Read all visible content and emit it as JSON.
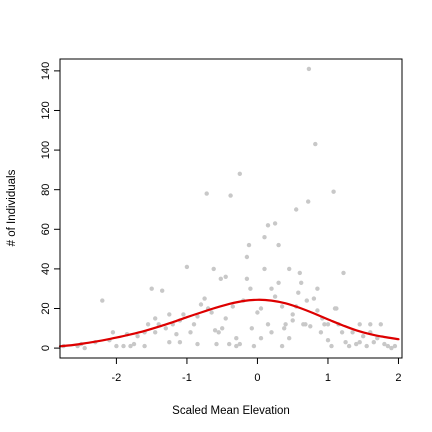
{
  "chart_data": {
    "type": "scatter",
    "title": "",
    "xlabel": "Scaled Mean Elevation",
    "ylabel": "# of Individuals",
    "xlim": [
      -2.8,
      2.05
    ],
    "ylim": [
      -5,
      146
    ],
    "x_ticks": [
      -2,
      -1,
      0,
      1,
      2
    ],
    "x_tick_labels": [
      "-2",
      "-1",
      "0",
      "1",
      "2"
    ],
    "y_ticks": [
      0,
      20,
      40,
      60,
      80,
      100,
      120,
      140
    ],
    "y_tick_labels": [
      "0",
      "20",
      "40",
      "60",
      "80",
      "100",
      "120",
      "140"
    ],
    "grid": false,
    "point_color": "#c8c8c8",
    "curve_color": "#dd0000",
    "series": [
      {
        "points": [
          [
            -2.75,
            1
          ],
          [
            -2.55,
            1
          ],
          [
            -2.5,
            2
          ],
          [
            -2.45,
            0
          ],
          [
            -2.3,
            3
          ],
          [
            -2.2,
            24
          ],
          [
            -2.1,
            4
          ],
          [
            -2.05,
            8
          ],
          [
            -2.0,
            1
          ],
          [
            -1.9,
            1
          ],
          [
            -1.85,
            7
          ],
          [
            -1.8,
            1
          ],
          [
            -1.75,
            2
          ],
          [
            -1.7,
            6
          ],
          [
            -1.6,
            1
          ],
          [
            -1.55,
            12
          ],
          [
            -1.5,
            30
          ],
          [
            -1.45,
            8
          ],
          [
            -1.4,
            12
          ],
          [
            -1.35,
            29
          ],
          [
            -1.3,
            10
          ],
          [
            -1.25,
            3
          ],
          [
            -1.2,
            12
          ],
          [
            -1.15,
            7
          ],
          [
            -1.1,
            3
          ],
          [
            -1.05,
            17
          ],
          [
            -1.0,
            41
          ],
          [
            -0.95,
            8
          ],
          [
            -0.9,
            12
          ],
          [
            -0.85,
            16
          ],
          [
            -0.8,
            22
          ],
          [
            -0.75,
            25
          ],
          [
            -0.7,
            20
          ],
          [
            -0.65,
            18
          ],
          [
            -0.6,
            9
          ],
          [
            -0.55,
            8
          ],
          [
            -0.5,
            10
          ],
          [
            -0.45,
            15
          ],
          [
            -0.4,
            2
          ],
          [
            -0.35,
            21
          ],
          [
            -0.3,
            1
          ],
          [
            -0.25,
            2
          ],
          [
            -0.2,
            24
          ],
          [
            -0.15,
            35
          ],
          [
            -0.1,
            30
          ],
          [
            -0.05,
            1
          ],
          [
            0.0,
            18
          ],
          [
            0.05,
            20
          ],
          [
            0.1,
            40
          ],
          [
            0.15,
            12
          ],
          [
            0.2,
            8
          ],
          [
            0.25,
            26
          ],
          [
            0.3,
            33
          ],
          [
            0.35,
            21
          ],
          [
            0.4,
            12
          ],
          [
            0.45,
            5
          ],
          [
            0.5,
            14
          ],
          [
            0.55,
            21
          ],
          [
            0.6,
            38
          ],
          [
            0.65,
            12
          ],
          [
            0.7,
            24
          ],
          [
            0.75,
            11
          ],
          [
            0.8,
            25
          ],
          [
            0.85,
            19
          ],
          [
            0.9,
            8
          ],
          [
            0.95,
            12
          ],
          [
            1.0,
            4
          ],
          [
            1.05,
            1
          ],
          [
            1.1,
            20
          ],
          [
            1.15,
            12
          ],
          [
            1.2,
            8
          ],
          [
            1.25,
            3
          ],
          [
            1.3,
            1
          ],
          [
            1.35,
            8
          ],
          [
            1.4,
            2
          ],
          [
            1.45,
            12
          ],
          [
            1.5,
            6
          ],
          [
            1.55,
            1
          ],
          [
            1.6,
            8
          ],
          [
            1.65,
            3
          ],
          [
            1.7,
            5
          ],
          [
            1.75,
            12
          ],
          [
            1.8,
            2
          ],
          [
            1.85,
            1
          ],
          [
            1.9,
            0
          ],
          [
            1.95,
            1
          ],
          [
            -0.72,
            78
          ],
          [
            -0.12,
            52
          ],
          [
            0.1,
            56
          ],
          [
            -0.25,
            88
          ],
          [
            0.25,
            63
          ],
          [
            0.45,
            40
          ],
          [
            0.73,
            141
          ],
          [
            0.82,
            103
          ],
          [
            1.08,
            79
          ],
          [
            0.72,
            74
          ],
          [
            0.55,
            70
          ],
          [
            0.15,
            62
          ],
          [
            0.3,
            52
          ],
          [
            -0.38,
            77
          ],
          [
            -0.62,
            40
          ],
          [
            0.2,
            30
          ],
          [
            -0.15,
            46
          ],
          [
            0.62,
            33
          ],
          [
            -0.45,
            36
          ],
          [
            1.22,
            38
          ],
          [
            0.58,
            28
          ],
          [
            -1.1,
            14
          ],
          [
            -1.25,
            17
          ],
          [
            -0.58,
            2
          ],
          [
            -0.3,
            5
          ],
          [
            -0.08,
            10
          ],
          [
            0.38,
            10
          ],
          [
            1.0,
            12
          ],
          [
            1.12,
            20
          ],
          [
            0.92,
            15
          ],
          [
            0.5,
            17
          ],
          [
            -0.85,
            2
          ],
          [
            1.45,
            3
          ],
          [
            1.6,
            12
          ],
          [
            -1.6,
            8
          ],
          [
            -1.45,
            15
          ],
          [
            0.35,
            1
          ],
          [
            0.05,
            5
          ],
          [
            -0.52,
            35
          ],
          [
            0.68,
            12
          ],
          [
            0.85,
            30
          ]
        ]
      },
      {
        "type": "line",
        "curve": [
          [
            -2.8,
            0.9
          ],
          [
            -2.6,
            1.6
          ],
          [
            -2.4,
            2.7
          ],
          [
            -2.2,
            3.9
          ],
          [
            -2.0,
            5.3
          ],
          [
            -1.8,
            6.9
          ],
          [
            -1.6,
            8.7
          ],
          [
            -1.4,
            10.8
          ],
          [
            -1.2,
            13.1
          ],
          [
            -1.0,
            15.6
          ],
          [
            -0.8,
            18.0
          ],
          [
            -0.6,
            20.3
          ],
          [
            -0.4,
            22.3
          ],
          [
            -0.2,
            23.8
          ],
          [
            0.0,
            24.4
          ],
          [
            0.2,
            24.0
          ],
          [
            0.4,
            22.6
          ],
          [
            0.6,
            20.3
          ],
          [
            0.8,
            17.5
          ],
          [
            1.0,
            14.5
          ],
          [
            1.2,
            11.6
          ],
          [
            1.4,
            9.0
          ],
          [
            1.6,
            7.0
          ],
          [
            1.8,
            5.6
          ],
          [
            2.0,
            4.5
          ]
        ]
      }
    ]
  }
}
